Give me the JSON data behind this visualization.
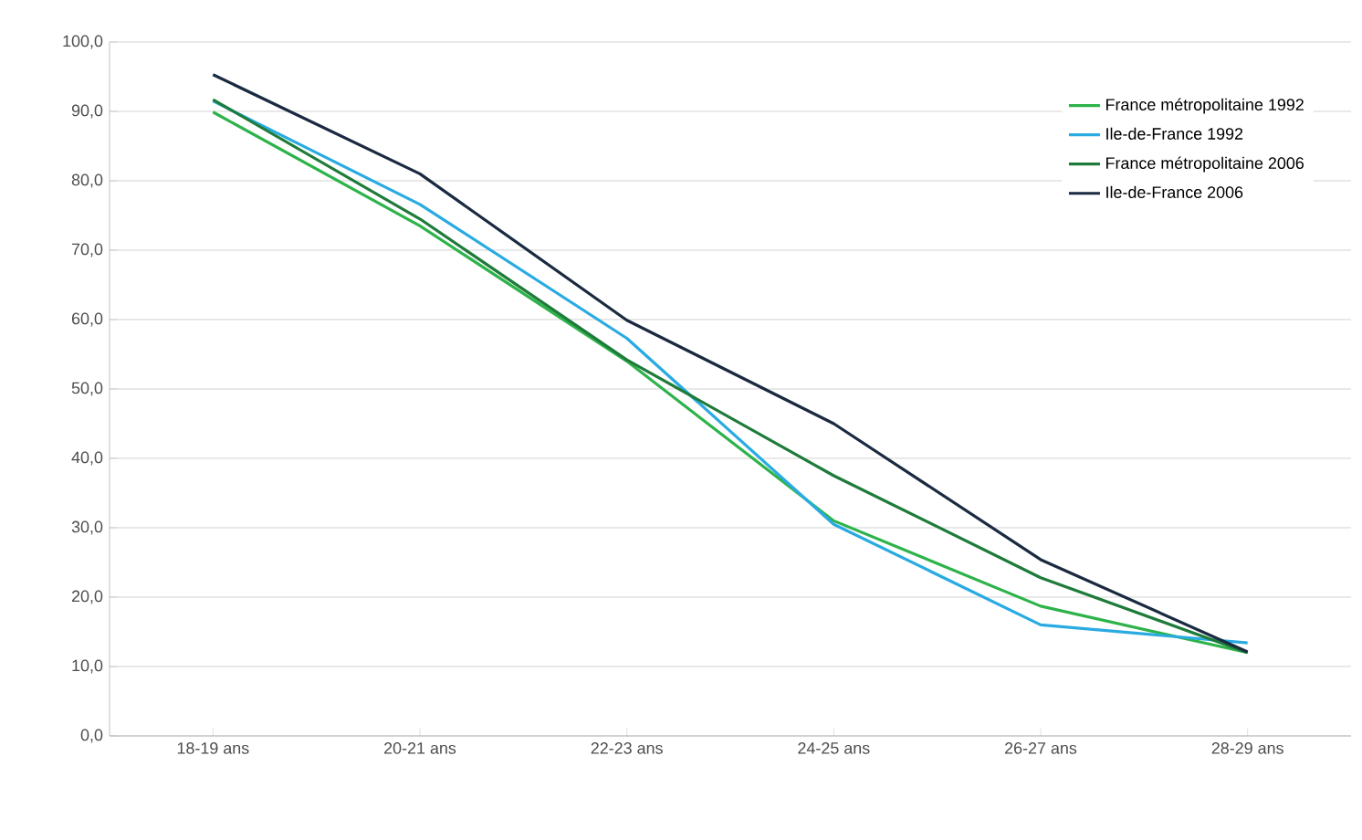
{
  "chart_data": {
    "type": "line",
    "categories": [
      "18-19 ans",
      "20-21 ans",
      "22-23 ans",
      "24-25 ans",
      "26-27 ans",
      "28-29 ans"
    ],
    "series": [
      {
        "name": "France métropolitaine 1992",
        "color": "#2db34a",
        "values": [
          89.9,
          73.5,
          54.0,
          31.0,
          18.7,
          12.0
        ]
      },
      {
        "name": "Ile-de-France 1992",
        "color": "#29abe2",
        "values": [
          91.5,
          76.6,
          57.3,
          30.5,
          16.0,
          13.4
        ]
      },
      {
        "name": "France métropolitaine 2006",
        "color": "#1e7b3a",
        "values": [
          91.7,
          74.5,
          54.2,
          37.5,
          22.8,
          12.0
        ]
      },
      {
        "name": "Ile-de-France 2006",
        "color": "#1a2a40",
        "values": [
          95.3,
          81.0,
          59.9,
          45.0,
          25.4,
          12.1
        ]
      }
    ],
    "ylim": [
      0,
      100
    ],
    "yticks": [
      {
        "value": 0,
        "label": "0,0"
      },
      {
        "value": 10,
        "label": "10,0"
      },
      {
        "value": 20,
        "label": "20,0"
      },
      {
        "value": 30,
        "label": "30,0"
      },
      {
        "value": 40,
        "label": "40,0"
      },
      {
        "value": 50,
        "label": "50,0"
      },
      {
        "value": 60,
        "label": "60,0"
      },
      {
        "value": 70,
        "label": "70,0"
      },
      {
        "value": 80,
        "label": "80,0"
      },
      {
        "value": 90,
        "label": "90,0"
      },
      {
        "value": 100,
        "label": "100,0"
      }
    ],
    "grid": "y",
    "legend": "top right",
    "marker": "none",
    "line_style": "solid"
  }
}
